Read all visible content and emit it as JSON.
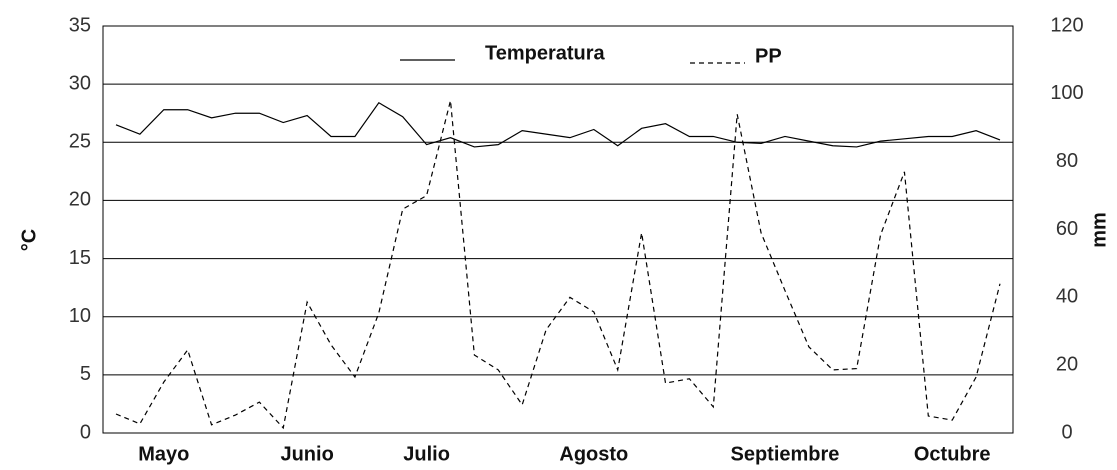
{
  "chart_data": {
    "type": "line",
    "categories": [
      null,
      null,
      "Mayo",
      null,
      null,
      null,
      null,
      null,
      "Junio",
      null,
      null,
      null,
      null,
      "Julio",
      null,
      null,
      null,
      null,
      null,
      null,
      "Agosto",
      null,
      null,
      null,
      null,
      null,
      null,
      null,
      "Septiembre",
      null,
      null,
      null,
      null,
      null,
      null,
      "Octubre",
      null,
      null
    ],
    "series": [
      {
        "name": "Temperatura",
        "color": "#000000",
        "dash": false,
        "values": [
          26.5,
          25.7,
          27.8,
          27.8,
          27.1,
          27.5,
          27.5,
          26.7,
          27.3,
          25.5,
          25.5,
          28.4,
          27.2,
          24.8,
          25.4,
          24.6,
          24.8,
          26.0,
          25.7,
          25.4,
          26.1,
          24.7,
          26.2,
          26.6,
          25.5,
          25.5,
          25.0,
          24.9,
          25.5,
          25.1,
          24.7,
          24.6,
          25.1,
          25.3,
          25.5,
          25.5,
          26.0,
          25.2
        ]
      },
      {
        "name": "PP",
        "color": "#000000",
        "dash": true,
        "axis": "y2",
        "values": [
          5.6,
          2.7,
          15,
          24.5,
          2.4,
          5.3,
          9.1,
          1.5,
          38.6,
          26,
          16.5,
          35.4,
          66,
          70,
          98,
          23,
          18.6,
          8.3,
          30.4,
          40,
          35.7,
          18.6,
          59,
          14.7,
          16,
          7.7,
          94,
          59,
          42,
          25.4,
          18.6,
          19,
          58.4,
          77,
          5,
          3.8,
          16.5,
          44
        ]
      }
    ],
    "ylabel": "°C",
    "y2label": "mm",
    "ylim": [
      0,
      35
    ],
    "yticks": [
      0,
      5,
      10,
      15,
      20,
      25,
      30,
      35
    ],
    "y2lim": [
      0,
      120
    ],
    "y2ticks": [
      0,
      20,
      40,
      60,
      80,
      100,
      120
    ],
    "grid": true
  }
}
